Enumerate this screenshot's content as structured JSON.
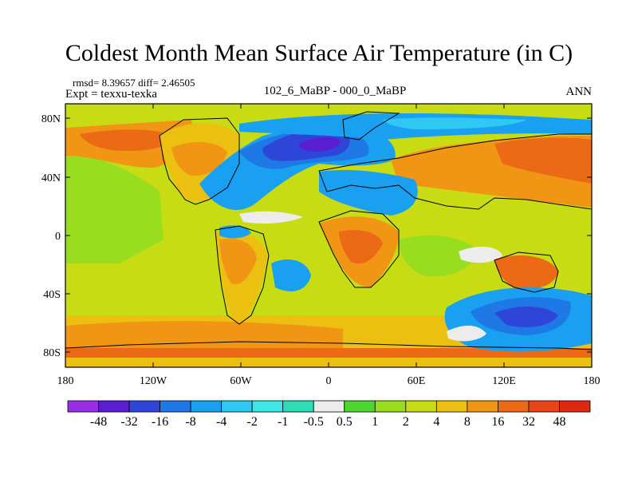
{
  "title": "Coldest Month Mean Surface Air Temperature (in C)",
  "stats": "rmsd= 8.39657 diff= 2.46505",
  "experiment": "Expt = texxu-texka",
  "comparison": "102_6_MaBP - 000_0_MaBP",
  "season": "ANN",
  "lat_ticks": [
    "80N",
    "40N",
    "0",
    "40S",
    "80S"
  ],
  "lon_ticks": [
    "180",
    "120W",
    "60W",
    "0",
    "60E",
    "120E",
    "180"
  ],
  "legend": {
    "labels": [
      "-48",
      "-32",
      "-16",
      "-8",
      "-4",
      "-2",
      "-1",
      "-0.5",
      "0.5",
      "1",
      "2",
      "4",
      "8",
      "16",
      "32",
      "48"
    ],
    "colors": [
      "#9a2ee6",
      "#5a1ed2",
      "#2e46d8",
      "#1e78e6",
      "#1aa0f0",
      "#2ec8f2",
      "#3ee6e6",
      "#30dcb4",
      "#ececec",
      "#4cd62e",
      "#98de1e",
      "#c8dc14",
      "#ecc010",
      "#f09614",
      "#ec6a16",
      "#e84616",
      "#e02810"
    ]
  }
}
